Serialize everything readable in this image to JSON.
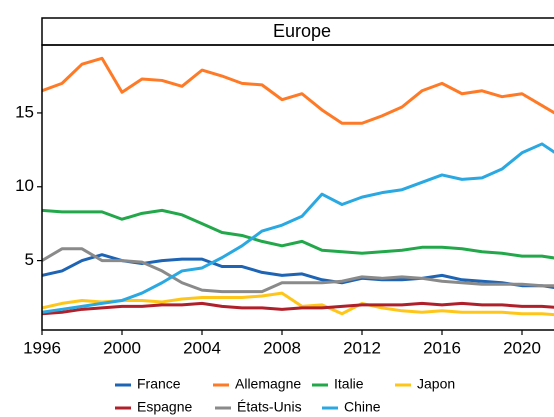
{
  "chart_data": {
    "type": "line",
    "title": "Europe",
    "x": [
      1996,
      1997,
      1998,
      1999,
      2000,
      2001,
      2002,
      2003,
      2004,
      2005,
      2006,
      2007,
      2008,
      2009,
      2010,
      2011,
      2012,
      2013,
      2014,
      2015,
      2016,
      2017,
      2018,
      2019,
      2020,
      2021,
      2022
    ],
    "xlim": [
      1996,
      2021.6
    ],
    "xticks": [
      1996,
      2000,
      2004,
      2008,
      2012,
      2016,
      2020
    ],
    "ylim": [
      0.3,
      19.6
    ],
    "yticks": [
      5,
      10,
      15
    ],
    "legend": "bottom",
    "series": [
      {
        "name": "France",
        "color": "#1e64b4",
        "values": [
          4.0,
          4.3,
          5.0,
          5.4,
          5.0,
          4.8,
          5.0,
          5.1,
          5.1,
          4.6,
          4.6,
          4.2,
          4.0,
          4.1,
          3.7,
          3.5,
          3.8,
          3.7,
          3.7,
          3.8,
          4.0,
          3.7,
          3.6,
          3.5,
          3.3,
          3.3,
          3.1
        ]
      },
      {
        "name": "Allemagne",
        "color": "#ff7a26",
        "values": [
          16.5,
          17.0,
          18.3,
          18.7,
          16.4,
          17.3,
          17.2,
          16.8,
          17.9,
          17.5,
          17.0,
          16.9,
          15.9,
          16.3,
          15.2,
          14.3,
          14.3,
          14.8,
          15.4,
          16.5,
          17.0,
          16.3,
          16.5,
          16.1,
          16.3,
          15.5,
          14.7
        ]
      },
      {
        "name": "Italie",
        "color": "#22a84a",
        "values": [
          8.4,
          8.3,
          8.3,
          8.3,
          7.8,
          8.2,
          8.4,
          8.1,
          7.5,
          6.9,
          6.7,
          6.3,
          6.0,
          6.3,
          5.7,
          5.6,
          5.5,
          5.6,
          5.7,
          5.9,
          5.9,
          5.8,
          5.6,
          5.5,
          5.3,
          5.3,
          5.1
        ]
      },
      {
        "name": "Japon",
        "color": "#ffc61a",
        "values": [
          1.8,
          2.1,
          2.3,
          2.2,
          2.3,
          2.3,
          2.2,
          2.4,
          2.5,
          2.5,
          2.5,
          2.6,
          2.8,
          1.9,
          2.0,
          1.4,
          2.1,
          1.8,
          1.6,
          1.5,
          1.6,
          1.5,
          1.5,
          1.5,
          1.4,
          1.4,
          1.3
        ]
      },
      {
        "name": "Espagne",
        "color": "#b0202a",
        "values": [
          1.4,
          1.5,
          1.7,
          1.8,
          1.9,
          1.9,
          2.0,
          2.0,
          2.1,
          1.9,
          1.8,
          1.8,
          1.7,
          1.8,
          1.8,
          1.9,
          2.0,
          2.0,
          2.0,
          2.1,
          2.0,
          2.1,
          2.0,
          2.0,
          1.9,
          1.9,
          1.8
        ]
      },
      {
        "name": "États-Unis",
        "color": "#8a8a8a",
        "values": [
          5.0,
          5.8,
          5.8,
          5.0,
          5.0,
          4.9,
          4.3,
          3.5,
          3.0,
          2.9,
          2.9,
          2.9,
          3.5,
          3.5,
          3.5,
          3.6,
          3.9,
          3.8,
          3.9,
          3.8,
          3.6,
          3.5,
          3.4,
          3.4,
          3.4,
          3.3,
          3.3
        ]
      },
      {
        "name": "Chine",
        "color": "#2aa8e2",
        "values": [
          1.5,
          1.7,
          1.9,
          2.1,
          2.3,
          2.8,
          3.5,
          4.3,
          4.5,
          5.2,
          6.0,
          7.0,
          7.4,
          8.0,
          9.5,
          8.8,
          9.3,
          9.6,
          9.8,
          10.3,
          10.8,
          10.5,
          10.6,
          11.2,
          12.3,
          12.9,
          12.0
        ]
      }
    ]
  }
}
